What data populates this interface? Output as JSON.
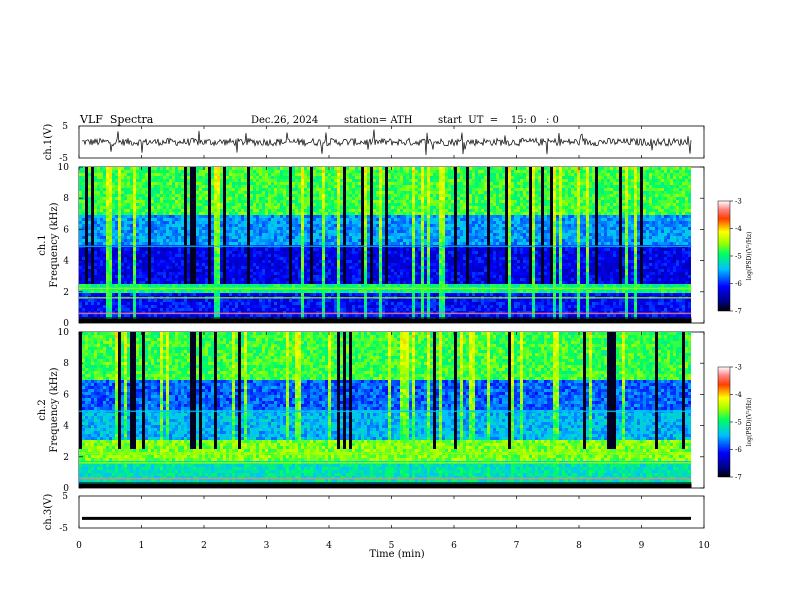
{
  "header": {
    "title": "VLF  Spectra",
    "date": "Dec.26, 2024",
    "station": "station= ATH",
    "start": "start  UT  =    15: 0   : 0"
  },
  "chart_data": {
    "type": "spectrogram",
    "x_axis": {
      "label": "Time  (min)",
      "range": [
        0,
        10
      ],
      "ticks": [
        "0",
        "1",
        "2",
        "3",
        "4",
        "5",
        "6",
        "7",
        "8",
        "9",
        "10"
      ]
    },
    "panels": [
      {
        "id": "ch1_waveform",
        "type": "line",
        "ylabel": "ch.1(V)",
        "ylim": [
          -5,
          5
        ],
        "ticks": [
          "5",
          "-5"
        ],
        "mean": 0,
        "amplitude": 1.2
      },
      {
        "id": "ch1_spectrogram",
        "type": "heatmap",
        "ylabel_top": "ch.1",
        "ylabel": "Frequency  (kHz)",
        "ylim": [
          0,
          10
        ],
        "ticks": [
          "0",
          "2",
          "4",
          "6",
          "8",
          "10"
        ],
        "colorbar": {
          "label": "log(PSD)(V²/Hz)",
          "range": [
            -7,
            -3
          ],
          "ticks": [
            "-3",
            "-4",
            "-5",
            "-6",
            "-7"
          ]
        }
      },
      {
        "id": "ch2_spectrogram",
        "type": "heatmap",
        "ylabel_top": "ch.2",
        "ylabel": "Frequency  (kHz)",
        "ylim": [
          0,
          10
        ],
        "ticks": [
          "0",
          "2",
          "4",
          "6",
          "8",
          "10"
        ],
        "colorbar": {
          "label": "log(PSD)(V²/Hz)",
          "range": [
            -7,
            -3
          ],
          "ticks": [
            "-3",
            "-4",
            "-5",
            "-6",
            "-7"
          ]
        }
      },
      {
        "id": "ch3_waveform",
        "type": "line",
        "ylabel": "ch.3(V)",
        "ylim": [
          -5,
          5
        ],
        "ticks": [
          "5",
          "-5"
        ],
        "mean": -2,
        "amplitude": 0.15
      }
    ],
    "data_end_min": 9.8
  }
}
